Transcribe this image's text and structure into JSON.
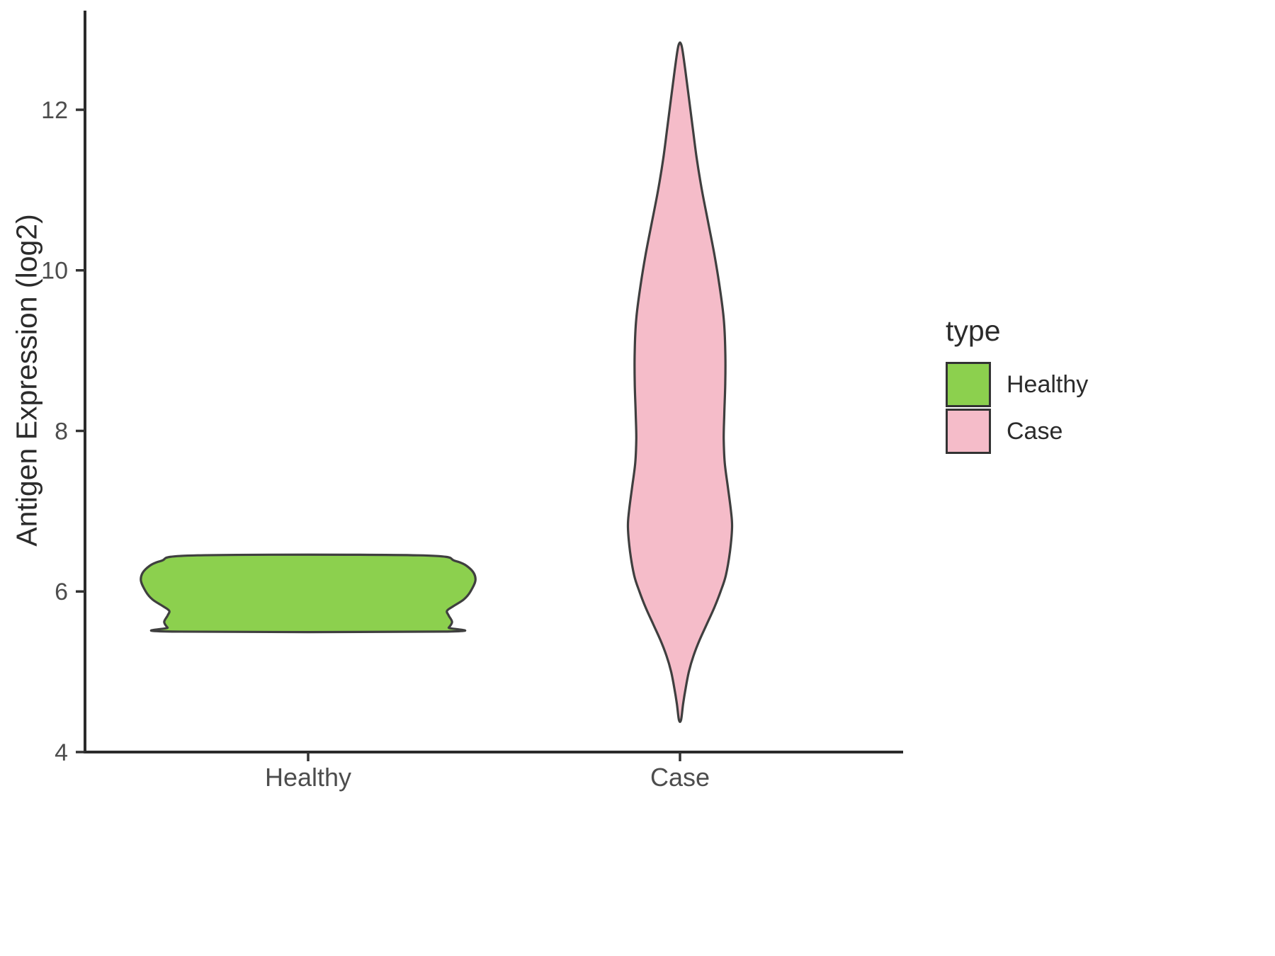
{
  "chart_data": {
    "type": "violin",
    "title": "",
    "xlabel": "",
    "ylabel": "Antigen Expression (log2)",
    "categories": [
      "Healthy",
      "Case"
    ],
    "y_ticks": [
      4,
      6,
      8,
      10,
      12
    ],
    "ylim": [
      4,
      13.2
    ],
    "grid": false,
    "legend": {
      "title": "type",
      "position": "right",
      "entries": [
        {
          "label": "Healthy",
          "color": "#8CD04E"
        },
        {
          "label": "Case",
          "color": "#F5BCC9"
        }
      ]
    },
    "series": [
      {
        "name": "Healthy",
        "color": "#8CD04E",
        "outline": "#3F3F3F",
        "width_frac": 0.9,
        "value_min": 5.5,
        "value_max": 6.45,
        "profile": [
          [
            6.45,
            0.66
          ],
          [
            6.38,
            0.88
          ],
          [
            6.28,
            0.97
          ],
          [
            6.15,
            1.0
          ],
          [
            6.0,
            0.97
          ],
          [
            5.9,
            0.93
          ],
          [
            5.82,
            0.87
          ],
          [
            5.76,
            0.83
          ],
          [
            5.7,
            0.84
          ],
          [
            5.62,
            0.86
          ],
          [
            5.55,
            0.84
          ],
          [
            5.5,
            0.81
          ]
        ]
      },
      {
        "name": "Case",
        "color": "#F5BCC9",
        "outline": "#3F3F3F",
        "width_frac": 0.28,
        "value_min": 4.4,
        "value_max": 12.8,
        "profile": [
          [
            12.8,
            0.03
          ],
          [
            12.5,
            0.1
          ],
          [
            12.2,
            0.16
          ],
          [
            11.8,
            0.24
          ],
          [
            11.4,
            0.32
          ],
          [
            11.0,
            0.42
          ],
          [
            10.6,
            0.54
          ],
          [
            10.2,
            0.66
          ],
          [
            9.8,
            0.76
          ],
          [
            9.4,
            0.84
          ],
          [
            9.0,
            0.87
          ],
          [
            8.6,
            0.87
          ],
          [
            8.2,
            0.85
          ],
          [
            7.9,
            0.84
          ],
          [
            7.6,
            0.86
          ],
          [
            7.3,
            0.92
          ],
          [
            7.0,
            0.98
          ],
          [
            6.8,
            1.0
          ],
          [
            6.5,
            0.96
          ],
          [
            6.2,
            0.88
          ],
          [
            6.0,
            0.78
          ],
          [
            5.8,
            0.66
          ],
          [
            5.6,
            0.52
          ],
          [
            5.4,
            0.38
          ],
          [
            5.2,
            0.26
          ],
          [
            5.0,
            0.17
          ],
          [
            4.8,
            0.11
          ],
          [
            4.6,
            0.06
          ],
          [
            4.4,
            0.02
          ]
        ]
      }
    ]
  }
}
